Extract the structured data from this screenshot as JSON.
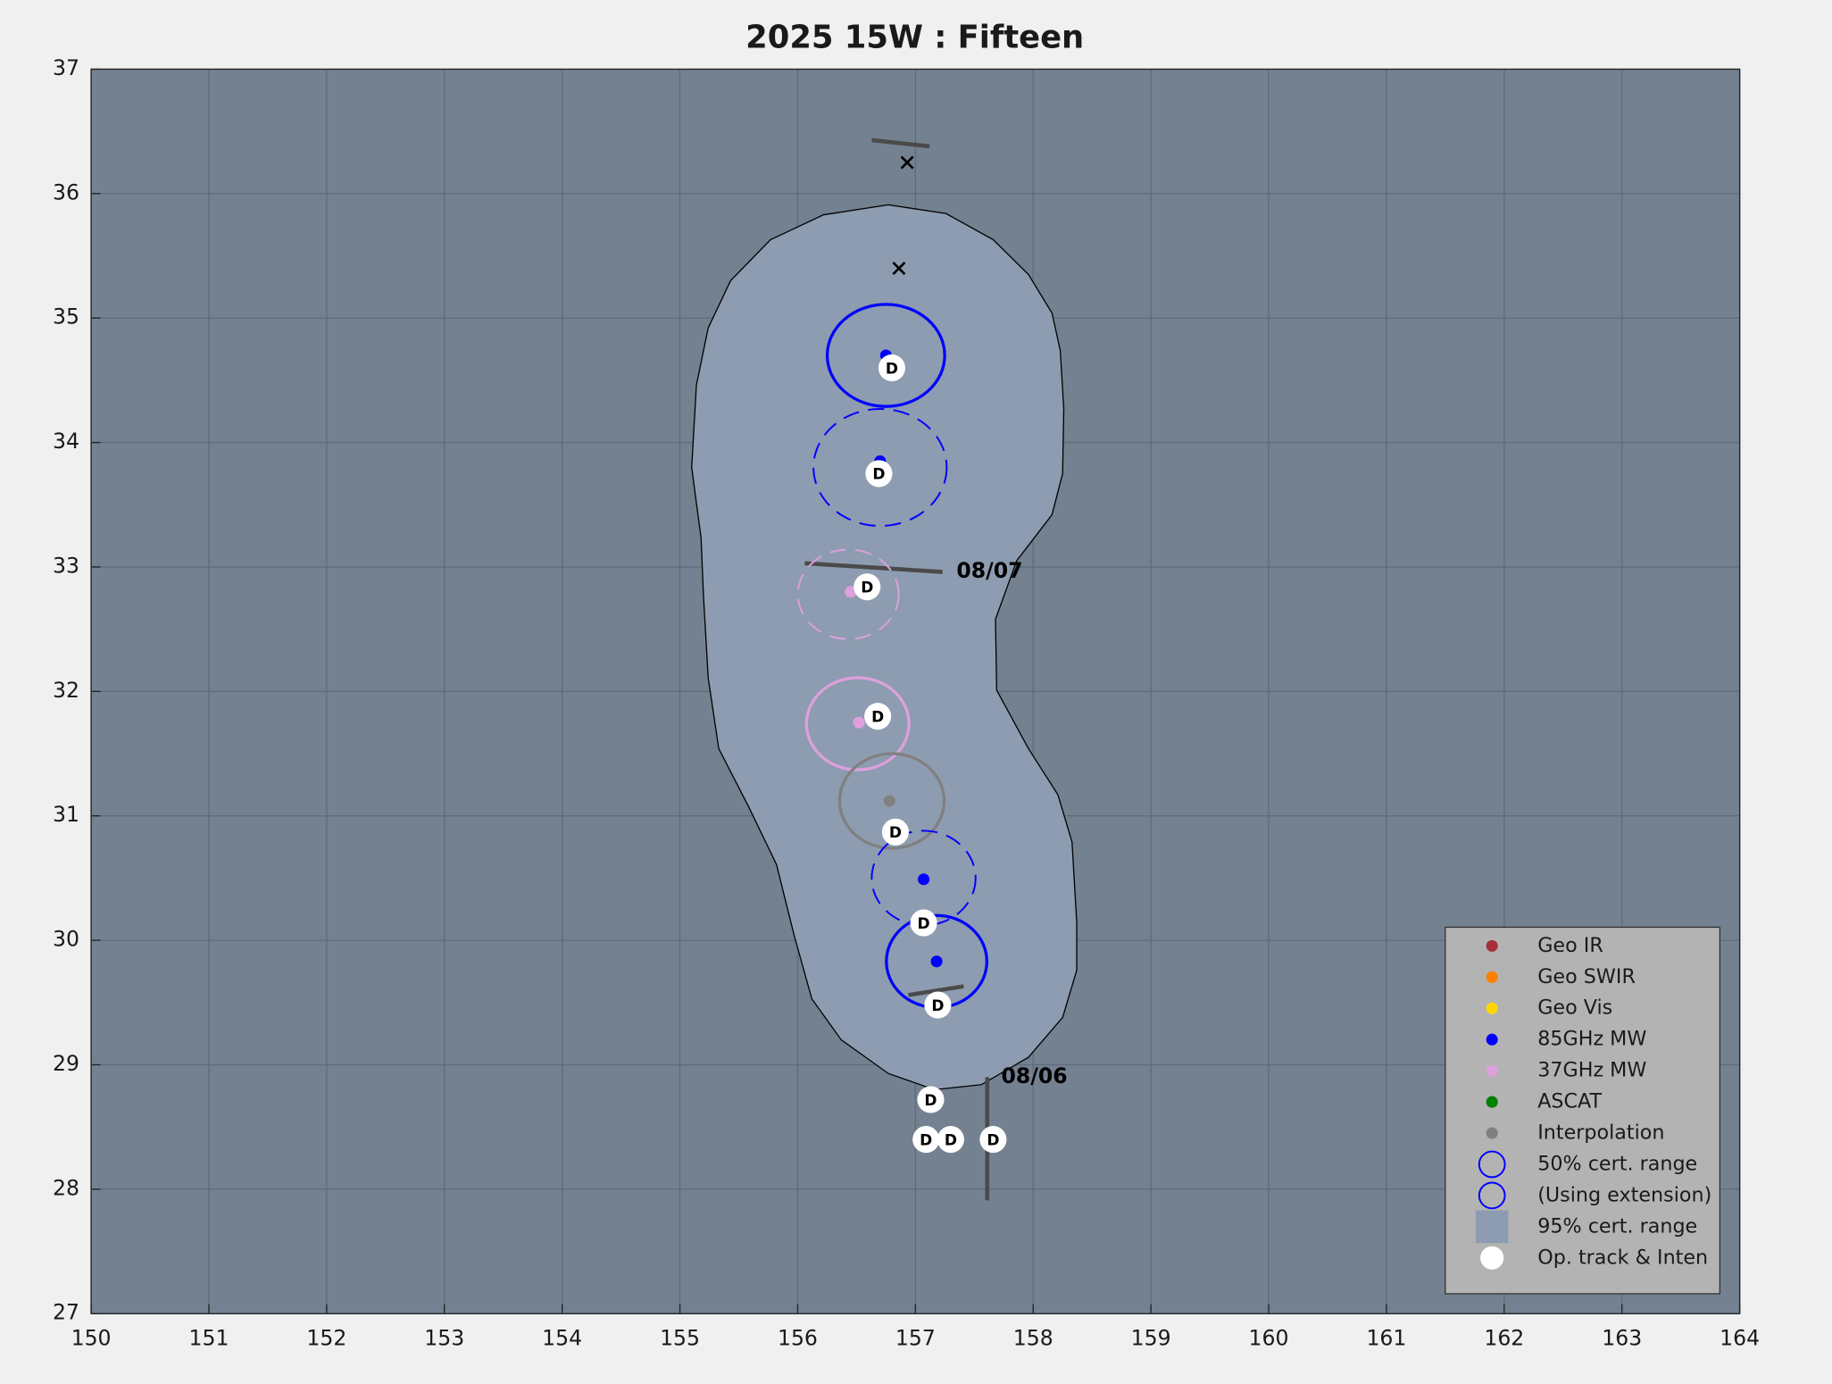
{
  "chart_data": {
    "type": "scatter",
    "title": "2025  15W :  Fifteen",
    "xlim": [
      150,
      164
    ],
    "ylim": [
      27,
      37
    ],
    "xticks": [
      150,
      151,
      152,
      153,
      154,
      155,
      156,
      157,
      158,
      159,
      160,
      161,
      162,
      163,
      164
    ],
    "yticks": [
      27,
      28,
      29,
      30,
      31,
      32,
      33,
      34,
      35,
      36,
      37
    ],
    "grid": true,
    "legend": "lower right",
    "series": [
      {
        "name": "Geo IR",
        "color": "#a5303b",
        "x": [],
        "y": []
      },
      {
        "name": "Geo SWIR",
        "color": "#ff8000",
        "x": [],
        "y": []
      },
      {
        "name": "Geo Vis",
        "color": "#ffd700",
        "x": [],
        "y": []
      },
      {
        "name": "85GHz MW",
        "color": "#0000ff",
        "x": [
          156.75,
          156.7,
          157.07,
          157.18
        ],
        "y": [
          34.7,
          33.85,
          30.49,
          29.83
        ]
      },
      {
        "name": "37GHz MW",
        "color": "#dda0dd",
        "x": [
          156.45,
          156.52
        ],
        "y": [
          32.8,
          31.75
        ]
      },
      {
        "name": "ASCAT",
        "color": "#008000",
        "x": [],
        "y": []
      },
      {
        "name": "Interpolation",
        "color": "#808080",
        "x": [
          156.78
        ],
        "y": [
          31.12
        ]
      }
    ],
    "range_legend": [
      {
        "name": "50% cert. range",
        "color": "#0000ff",
        "dashed": false
      },
      {
        "name": "(Using extension)",
        "color": "#0000ff",
        "dashed": false
      }
    ],
    "circles": [
      {
        "x": 156.75,
        "y": 34.7,
        "r": 0.41,
        "color": "#0000ff",
        "dashed": false
      },
      {
        "x": 156.7,
        "y": 33.8,
        "r": 0.47,
        "color": "#0000ff",
        "dashed": true
      },
      {
        "x": 156.43,
        "y": 32.78,
        "r": 0.36,
        "color": "#dda0dd",
        "dashed": true
      },
      {
        "x": 156.51,
        "y": 31.74,
        "r": 0.37,
        "color": "#dda0dd",
        "dashed": false
      },
      {
        "x": 156.8,
        "y": 31.12,
        "r": 0.38,
        "color": "#808080",
        "dashed": false
      },
      {
        "x": 157.07,
        "y": 30.5,
        "r": 0.38,
        "color": "#0000ff",
        "dashed": true
      },
      {
        "x": 157.18,
        "y": 29.83,
        "r": 0.37,
        "color": "#0000ff",
        "dashed": false
      }
    ],
    "region": {
      "name": "95% cert. range",
      "color": "#8d9cb0",
      "x": [
        156.77,
        157.26,
        157.66,
        157.96,
        158.16,
        158.23,
        158.26,
        158.25,
        158.16,
        157.86,
        157.68,
        157.69,
        157.96,
        158.21,
        158.33,
        158.37,
        158.37,
        158.25,
        157.96,
        157.56,
        157.16,
        156.77,
        156.37,
        156.12,
        155.97,
        155.82,
        155.58,
        155.33,
        155.24,
        155.2,
        155.18,
        155.1,
        155.14,
        155.24,
        155.43,
        155.77,
        156.22
      ],
      "y": [
        35.91,
        35.84,
        35.63,
        35.35,
        35.04,
        34.74,
        34.27,
        33.75,
        33.42,
        33.05,
        32.58,
        32.01,
        31.54,
        31.17,
        30.79,
        30.14,
        29.76,
        29.38,
        29.06,
        28.84,
        28.8,
        28.93,
        29.2,
        29.53,
        30.04,
        30.61,
        31.08,
        31.54,
        32.11,
        32.77,
        33.23,
        33.8,
        34.46,
        34.92,
        35.3,
        35.63,
        35.83
      ]
    },
    "track": {
      "name": "Op. track & Inten",
      "color": "#ffffff",
      "x": [
        156.8,
        156.69,
        156.59,
        156.68,
        156.83,
        157.07,
        157.19,
        157.13,
        157.09,
        157.3,
        157.66
      ],
      "y": [
        34.6,
        33.75,
        32.84,
        31.8,
        30.87,
        30.14,
        29.48,
        28.72,
        28.4,
        28.4,
        28.4
      ],
      "labels": [
        "D",
        "D",
        "D",
        "D",
        "D",
        "D",
        "D",
        "D",
        "D",
        "D",
        "D"
      ]
    },
    "forecast": {
      "x": [
        156.93,
        156.86
      ],
      "y": [
        36.25,
        35.4
      ]
    },
    "time_marks": [
      {
        "x": [
          157.23,
          156.06
        ],
        "y": [
          32.96,
          33.03
        ],
        "label": "08/07"
      },
      {
        "x": [
          157.61,
          157.61
        ],
        "y": [
          28.9,
          27.91
        ],
        "label": "08/06"
      },
      {
        "x": [
          156.63,
          157.12
        ],
        "y": [
          36.43,
          36.38
        ]
      },
      {
        "x": [
          156.94,
          157.41
        ],
        "y": [
          29.56,
          29.63
        ]
      }
    ]
  }
}
